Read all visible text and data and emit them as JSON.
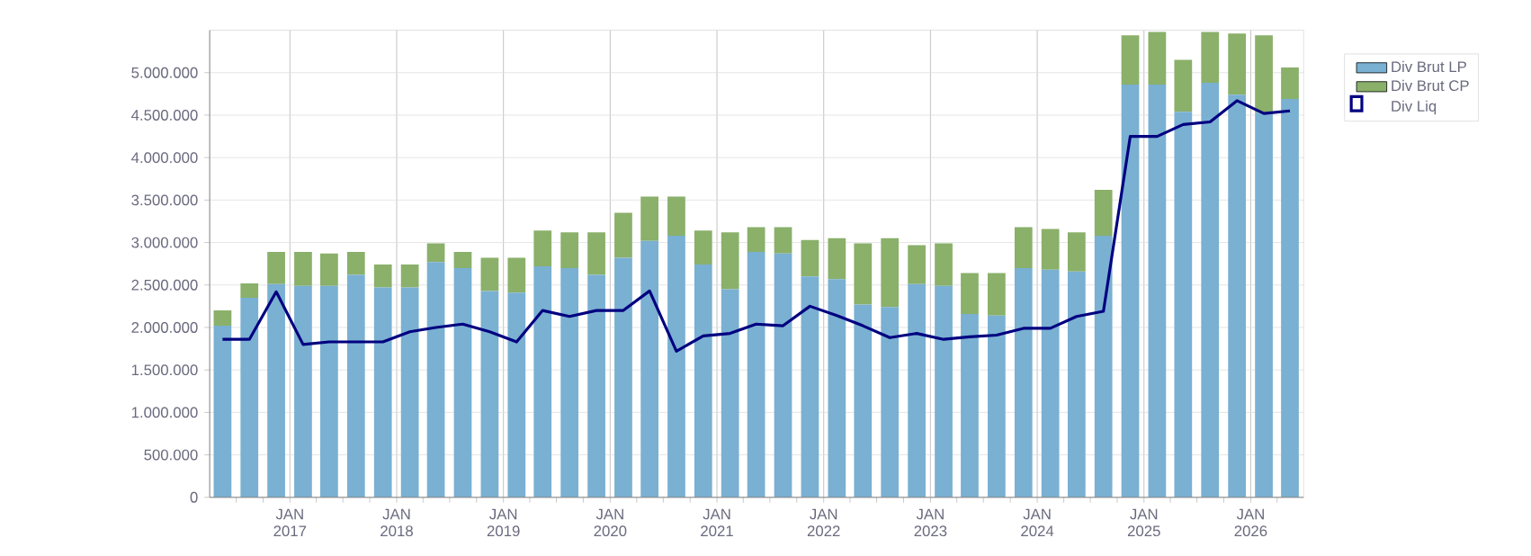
{
  "chart_data": {
    "type": "bar",
    "stacked": true,
    "grid": true,
    "legend": "top right",
    "x": [
      "2016-05-15",
      "2016-08-15",
      "2016-11-15",
      "2017-02-15",
      "2017-05-15",
      "2017-08-15",
      "2017-11-15",
      "2018-02-15",
      "2018-05-15",
      "2018-08-15",
      "2018-11-15",
      "2019-02-15",
      "2019-05-15",
      "2019-08-15",
      "2019-11-15",
      "2020-02-15",
      "2020-05-15",
      "2020-08-15",
      "2020-11-15",
      "2021-02-15",
      "2021-05-15",
      "2021-08-15",
      "2021-11-15",
      "2022-02-15",
      "2022-05-15",
      "2022-08-15",
      "2022-11-15",
      "2023-02-15",
      "2023-05-15",
      "2023-08-15",
      "2023-11-15",
      "2024-02-15",
      "2024-05-15",
      "2024-08-15",
      "2024-11-15",
      "2025-02-15",
      "2025-05-15",
      "2025-08-15",
      "2025-11-15",
      "2026-02-15",
      "2026-05-15"
    ],
    "series": [
      {
        "name": "Div Brut LP",
        "color": "#7ab0d2",
        "values": [
          2020000,
          2350000,
          2510000,
          2490000,
          2490000,
          2620000,
          2470000,
          2470000,
          2770000,
          2700000,
          2430000,
          2410000,
          2720000,
          2700000,
          2620000,
          2820000,
          3020000,
          3080000,
          2740000,
          2450000,
          2890000,
          2870000,
          2600000,
          2570000,
          2270000,
          2240000,
          2510000,
          2490000,
          2160000,
          2140000,
          2700000,
          2680000,
          2660000,
          3080000,
          4860000,
          4860000,
          4540000,
          4880000,
          4740000,
          4530000,
          4690000
        ]
      },
      {
        "name": "Div Brut CP",
        "color": "#8ab06a",
        "values": [
          180000,
          170000,
          380000,
          400000,
          380000,
          270000,
          270000,
          270000,
          220000,
          190000,
          390000,
          410000,
          420000,
          420000,
          500000,
          530000,
          520000,
          460000,
          400000,
          670000,
          290000,
          310000,
          430000,
          480000,
          720000,
          810000,
          460000,
          500000,
          480000,
          500000,
          480000,
          480000,
          460000,
          540000,
          580000,
          620000,
          610000,
          600000,
          720000,
          910000,
          370000
        ]
      },
      {
        "name": "Div Liq",
        "type": "line",
        "color": "#000080",
        "values": [
          1860000,
          1860000,
          2420000,
          1800000,
          1830000,
          1830000,
          1830000,
          1950000,
          2000000,
          2040000,
          1950000,
          1830000,
          2200000,
          2130000,
          2200000,
          2200000,
          2430000,
          1720000,
          1900000,
          1930000,
          2040000,
          2020000,
          2250000,
          2140000,
          2020000,
          1880000,
          1930000,
          1860000,
          1890000,
          1910000,
          1990000,
          1990000,
          2130000,
          2190000,
          4250000,
          4250000,
          4390000,
          4420000,
          4670000,
          4520000,
          4550000
        ]
      }
    ],
    "xlim": [
      "2016-04-01",
      "2026-07-01"
    ],
    "xticks": [
      {
        "value": "2016-07-01",
        "label": null
      },
      {
        "value": "2016-10-01",
        "label": null
      },
      {
        "value": "2017-01-01",
        "label": "JAN 2017"
      },
      {
        "value": "2017-04-01",
        "label": null
      },
      {
        "value": "2017-07-01",
        "label": null
      },
      {
        "value": "2017-10-01",
        "label": null
      },
      {
        "value": "2018-01-01",
        "label": "JAN 2018"
      },
      {
        "value": "2018-04-01",
        "label": null
      },
      {
        "value": "2018-07-01",
        "label": null
      },
      {
        "value": "2018-10-01",
        "label": null
      },
      {
        "value": "2019-01-01",
        "label": "JAN 2019"
      },
      {
        "value": "2019-04-01",
        "label": null
      },
      {
        "value": "2019-07-01",
        "label": null
      },
      {
        "value": "2019-10-01",
        "label": null
      },
      {
        "value": "2020-01-01",
        "label": "JAN 2020"
      },
      {
        "value": "2020-04-01",
        "label": null
      },
      {
        "value": "2020-07-01",
        "label": null
      },
      {
        "value": "2020-10-01",
        "label": null
      },
      {
        "value": "2021-01-01",
        "label": "JAN 2021"
      },
      {
        "value": "2021-04-01",
        "label": null
      },
      {
        "value": "2021-07-01",
        "label": null
      },
      {
        "value": "2021-10-01",
        "label": null
      },
      {
        "value": "2022-01-01",
        "label": "JAN 2022"
      },
      {
        "value": "2022-04-01",
        "label": null
      },
      {
        "value": "2022-07-01",
        "label": null
      },
      {
        "value": "2022-10-01",
        "label": null
      },
      {
        "value": "2023-01-01",
        "label": "JAN 2023"
      },
      {
        "value": "2023-04-01",
        "label": null
      },
      {
        "value": "2023-07-01",
        "label": null
      },
      {
        "value": "2023-10-01",
        "label": null
      },
      {
        "value": "2024-01-01",
        "label": "JAN 2024"
      },
      {
        "value": "2024-04-01",
        "label": null
      },
      {
        "value": "2024-07-01",
        "label": null
      },
      {
        "value": "2024-10-01",
        "label": null
      },
      {
        "value": "2025-01-01",
        "label": "JAN 2025"
      },
      {
        "value": "2025-04-01",
        "label": null
      },
      {
        "value": "2025-07-01",
        "label": null
      },
      {
        "value": "2025-10-01",
        "label": null
      },
      {
        "value": "2026-01-01",
        "label": "JAN 2026"
      },
      {
        "value": "2026-04-01",
        "label": null
      }
    ],
    "ylim": [
      0,
      5500000
    ],
    "yticks": [
      0,
      {
        "value": 500000,
        "label": "500.000"
      },
      {
        "value": 1000000,
        "label": "1.000.000"
      },
      {
        "value": 1500000,
        "label": "1.500.000"
      },
      {
        "value": 2000000,
        "label": "2.000.000"
      },
      {
        "value": 2500000,
        "label": "2.500.000"
      },
      {
        "value": 3000000,
        "label": "3.000.000"
      },
      {
        "value": 3500000,
        "label": "3.500.000"
      },
      {
        "value": 4000000,
        "label": "4.000.000"
      },
      {
        "value": 4500000,
        "label": "4.500.000"
      },
      {
        "value": 5000000,
        "label": "5.000.000"
      }
    ]
  }
}
